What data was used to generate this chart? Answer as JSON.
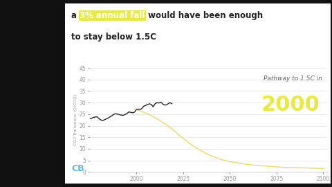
{
  "title_prefix": "a ",
  "title_highlight": "3% annual fall",
  "title_suffix": " would have been enough\nto stay below 1.5C",
  "highlight_bg_color": "#e8e84a",
  "highlight_text_color": "#ffffff",
  "annotation_italic": "Pathway to 1.5C in",
  "annotation_year": "2000",
  "annotation_year_color": "#e8e84a",
  "annotation_italic_color": "#666666",
  "ylabel": "CO2 Emissions (GtCO2)",
  "xlim": [
    1975,
    2102
  ],
  "ylim": [
    0,
    45
  ],
  "yticks": [
    0,
    5,
    10,
    15,
    20,
    25,
    30,
    35,
    40,
    45
  ],
  "xticks": [
    2000,
    2025,
    2050,
    2075,
    2100
  ],
  "bg_color": "#ffffff",
  "plot_bg": "#ffffff",
  "outer_bg": "#111111",
  "historical_color": "#222222",
  "pathway_color": "#e8d87a",
  "cb_color": "#6ab4d8",
  "historical_years": [
    1975,
    1976,
    1977,
    1978,
    1979,
    1980,
    1981,
    1982,
    1983,
    1984,
    1985,
    1986,
    1987,
    1988,
    1989,
    1990,
    1991,
    1992,
    1993,
    1994,
    1995,
    1996,
    1997,
    1998,
    1999,
    2000,
    2001,
    2002,
    2003,
    2004,
    2005,
    2006,
    2007,
    2008,
    2009,
    2010,
    2011,
    2012,
    2013,
    2014,
    2015,
    2016,
    2017,
    2018,
    2019
  ],
  "historical_values": [
    23.0,
    23.2,
    23.6,
    23.8,
    23.9,
    23.1,
    22.5,
    22.3,
    22.6,
    23.0,
    23.4,
    23.9,
    24.4,
    25.0,
    25.2,
    25.0,
    24.8,
    24.6,
    24.5,
    24.9,
    25.3,
    26.0,
    25.8,
    25.6,
    25.9,
    27.0,
    27.2,
    27.0,
    27.5,
    28.5,
    28.8,
    29.2,
    29.5,
    29.2,
    28.2,
    29.5,
    30.0,
    29.8,
    30.2,
    29.5,
    29.0,
    29.0,
    29.5,
    30.0,
    29.5
  ],
  "pathway_years": [
    2000,
    2005,
    2010,
    2015,
    2020,
    2025,
    2030,
    2035,
    2040,
    2045,
    2050,
    2060,
    2070,
    2080,
    2090,
    2100
  ],
  "pathway_values": [
    27.0,
    25.5,
    23.5,
    21.0,
    18.0,
    14.5,
    11.5,
    9.0,
    7.0,
    5.5,
    4.5,
    3.2,
    2.5,
    2.0,
    1.8,
    1.5
  ]
}
